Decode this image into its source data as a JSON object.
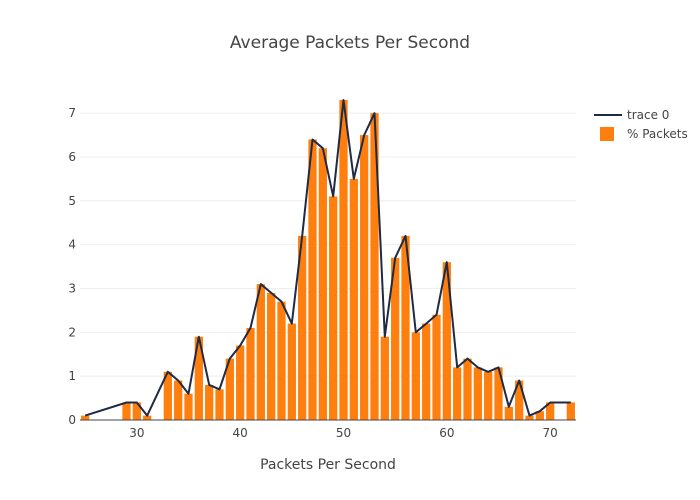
{
  "chart_data": {
    "type": "bar",
    "title": "Average Packets Per Second",
    "xlabel": "Packets Per Second",
    "ylabel": "",
    "xlim": [
      24.5,
      72.5
    ],
    "ylim": [
      0,
      7.3
    ],
    "xticks": [
      30,
      40,
      50,
      60,
      70
    ],
    "yticks": [
      0,
      1,
      2,
      3,
      4,
      5,
      6,
      7
    ],
    "grid": true,
    "legend_position": "top-right",
    "colors": {
      "bar": "#ff7f0e",
      "line": "#1f2a44",
      "grid": "#eeeeee",
      "text": "#444444"
    },
    "series": [
      {
        "name": "trace 0",
        "kind": "line",
        "x": [
          25,
          29,
          30,
          31,
          33,
          34,
          35,
          36,
          37,
          38,
          39,
          40,
          41,
          42,
          43,
          44,
          45,
          46,
          47,
          48,
          49,
          50,
          51,
          52,
          53,
          54,
          55,
          56,
          57,
          58,
          59,
          60,
          61,
          62,
          63,
          64,
          65,
          66,
          67,
          68,
          69,
          70,
          72
        ],
        "y": [
          0.1,
          0.4,
          0.4,
          0.1,
          1.1,
          0.9,
          0.6,
          1.9,
          0.8,
          0.7,
          1.4,
          1.7,
          2.1,
          3.1,
          2.9,
          2.7,
          2.2,
          4.2,
          6.4,
          6.2,
          5.1,
          7.3,
          5.5,
          6.5,
          7.0,
          1.9,
          3.7,
          4.2,
          2.0,
          2.2,
          2.4,
          3.6,
          1.2,
          1.4,
          1.2,
          1.1,
          1.2,
          0.3,
          0.9,
          0.1,
          0.2,
          0.4,
          0.4
        ]
      },
      {
        "name": "% Packets",
        "kind": "bar",
        "x": [
          25,
          29,
          30,
          31,
          33,
          34,
          35,
          36,
          37,
          38,
          39,
          40,
          41,
          42,
          43,
          44,
          45,
          46,
          47,
          48,
          49,
          50,
          51,
          52,
          53,
          54,
          55,
          56,
          57,
          58,
          59,
          60,
          61,
          62,
          63,
          64,
          65,
          66,
          67,
          68,
          69,
          70,
          72
        ],
        "y": [
          0.1,
          0.4,
          0.4,
          0.1,
          1.1,
          0.9,
          0.6,
          1.9,
          0.8,
          0.7,
          1.4,
          1.7,
          2.1,
          3.1,
          2.9,
          2.7,
          2.2,
          4.2,
          6.4,
          6.2,
          5.1,
          7.3,
          5.5,
          6.5,
          7.0,
          1.9,
          3.7,
          4.2,
          2.0,
          2.2,
          2.4,
          3.6,
          1.2,
          1.4,
          1.2,
          1.1,
          1.2,
          0.3,
          0.9,
          0.1,
          0.2,
          0.4,
          0.4
        ]
      }
    ]
  }
}
